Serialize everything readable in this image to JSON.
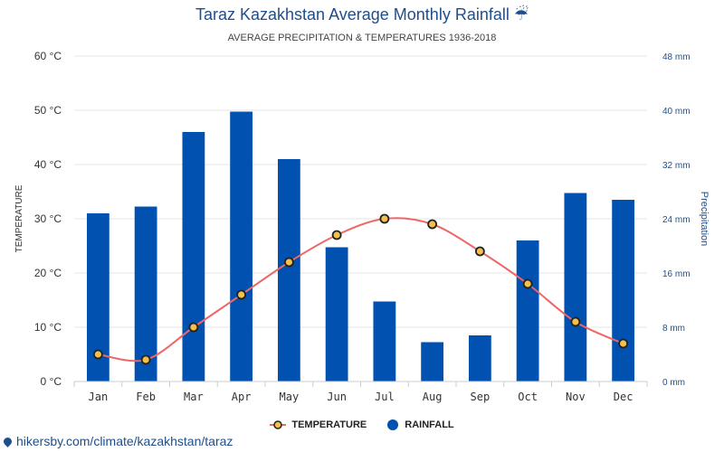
{
  "header": {
    "title": "Taraz Kazakhstan Average Monthly Rainfall",
    "title_icon": "umbrella-rain-icon",
    "subtitle": "AVERAGE PRECIPITATION & TEMPERATURES 1936-2018"
  },
  "footer": {
    "link_text": "hikersby.com/climate/kazakhstan/taraz",
    "icon": "map-pin-icon"
  },
  "colors": {
    "bar": "#0051b0",
    "temp_line": "#ee6666",
    "temp_marker_fill": "#f5c14b",
    "temp_marker_stroke": "#222222",
    "grid": "#e6e6e6",
    "right_axis": "#1f4e8c"
  },
  "chart_data": {
    "type": "bar",
    "title": "Taraz Kazakhstan Average Monthly Rainfall",
    "subtitle": "AVERAGE PRECIPITATION & TEMPERATURES 1936-2018",
    "categories": [
      "Jan",
      "Feb",
      "Mar",
      "Apr",
      "May",
      "Jun",
      "Jul",
      "Aug",
      "Sep",
      "Oct",
      "Nov",
      "Dec"
    ],
    "series": [
      {
        "name": "RAINFALL",
        "type": "bar",
        "axis": "right",
        "values": [
          24.8,
          25.8,
          36.8,
          39.8,
          32.8,
          19.8,
          11.8,
          5.8,
          6.8,
          20.8,
          27.8,
          26.8
        ]
      },
      {
        "name": "TEMPERATURE",
        "type": "line",
        "axis": "left",
        "values": [
          5,
          4,
          10,
          16,
          22,
          27,
          30,
          29,
          24,
          18,
          11,
          7
        ]
      }
    ],
    "ylabel": "TEMPERATURE",
    "y2label": "Precipitation",
    "ylim": [
      0,
      60
    ],
    "y2lim": [
      0,
      48
    ],
    "yticks": [
      "0 °C",
      "10 °C",
      "20 °C",
      "30 °C",
      "40 °C",
      "50 °C",
      "60 °C"
    ],
    "y2ticks": [
      "0 mm",
      "8 mm",
      "16 mm",
      "24 mm",
      "32 mm",
      "40 mm",
      "48 mm"
    ],
    "grid": true,
    "legend": {
      "placement": "bottom-center",
      "entries": [
        "TEMPERATURE",
        "RAINFALL"
      ]
    }
  }
}
